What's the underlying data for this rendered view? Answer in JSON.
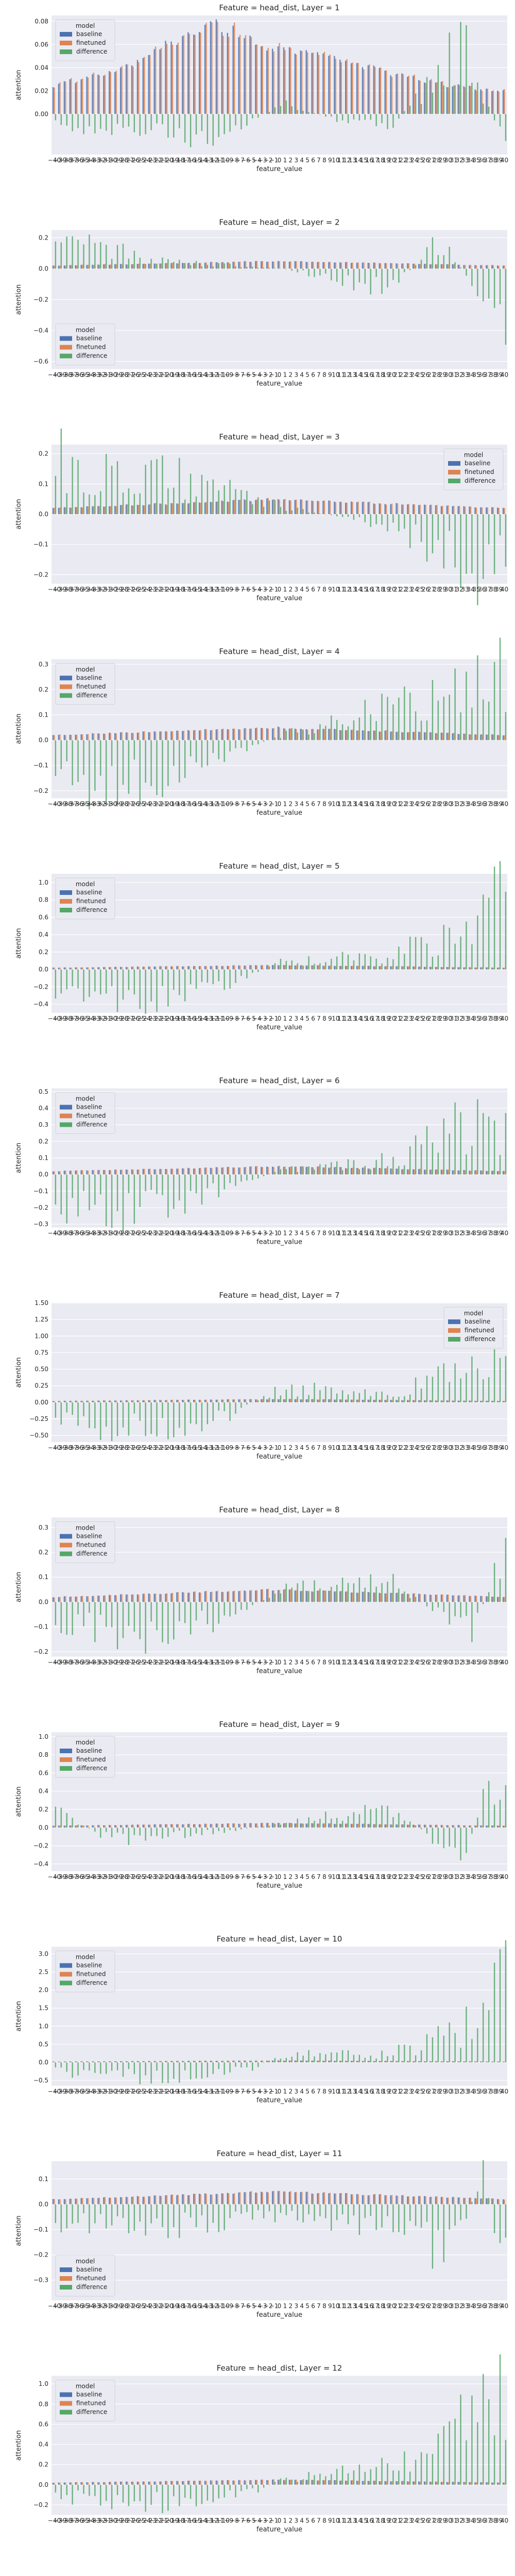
{
  "figure": {
    "colors": {
      "panel_bg": "#eaeaf2",
      "grid": "#ffffff",
      "baseline": "#4c72b0",
      "finetuned": "#dd8452",
      "difference": "#55a868"
    },
    "legend_title": "model",
    "legend_labels": [
      "baseline",
      "finetuned",
      "difference"
    ],
    "xlabel": "feature_value",
    "ylabel": "attention"
  },
  "chart_data": [
    {
      "type": "bar",
      "title": "Feature = head_dist, Layer = 1",
      "xlabel": "feature_value",
      "ylabel": "attention",
      "ylim": [
        -0.035,
        0.085
      ],
      "yticks": [
        0.0,
        0.02,
        0.04,
        0.06,
        0.08
      ],
      "ytick_labels": [
        "0.00",
        "0.02",
        "0.04",
        "0.06",
        "0.08"
      ],
      "legend_placement": "upper-left",
      "grid": true,
      "x_range": [
        -40,
        40
      ],
      "series": [
        {
          "name": "baseline",
          "profile": "hump",
          "peak_at": -11,
          "values_sample": {
            "-40": 0.025,
            "-30": 0.035,
            "-20": 0.06,
            "-11": 0.078,
            "0": 0.055,
            "10": 0.05,
            "20": 0.035,
            "30": 0.025,
            "40": 0.02
          }
        },
        {
          "name": "finetuned",
          "profile": "hump",
          "peak_at": -11,
          "values_sample": {
            "-40": 0.025,
            "-30": 0.035,
            "-20": 0.06,
            "-11": 0.078,
            "0": 0.055,
            "10": 0.05,
            "20": 0.035,
            "30": 0.025,
            "40": 0.02
          }
        },
        {
          "name": "difference",
          "values_sample": {
            "-40": -0.01,
            "-20": -0.02,
            "-11": -0.025,
            "0": 0.01,
            "10": -0.005,
            "20": -0.01,
            "32": 0.065,
            "40": -0.03
          }
        }
      ]
    },
    {
      "type": "bar",
      "title": "Feature = head_dist, Layer = 2",
      "xlabel": "feature_value",
      "ylabel": "attention",
      "ylim": [
        -0.65,
        0.25
      ],
      "yticks": [
        -0.6,
        -0.4,
        -0.2,
        0.0,
        0.2
      ],
      "ytick_labels": [
        "−0.6",
        "−0.4",
        "−0.2",
        "0.0",
        "0.2"
      ],
      "legend_placement": "lower-left",
      "grid": true,
      "x_range": [
        -40,
        40
      ],
      "series": [
        {
          "name": "baseline",
          "values_sample": {
            "-40": 0.02,
            "0": 0.05,
            "40": 0.02
          }
        },
        {
          "name": "finetuned",
          "values_sample": {
            "-40": 0.02,
            "0": 0.05,
            "40": 0.02
          }
        },
        {
          "name": "difference",
          "values_sample": {
            "-40": 0.2,
            "-35": 0.18,
            "-20": 0.05,
            "0": 0.0,
            "20": -0.15,
            "28": 0.2,
            "40": -0.38
          }
        }
      ]
    },
    {
      "type": "bar",
      "title": "Feature = head_dist, Layer = 3",
      "xlabel": "feature_value",
      "ylabel": "attention",
      "ylim": [
        -0.23,
        0.23
      ],
      "yticks": [
        -0.2,
        -0.1,
        0.0,
        0.1,
        0.2
      ],
      "ytick_labels": [
        "−0.2",
        "−0.1",
        "0.0",
        "0.1",
        "0.2"
      ],
      "legend_placement": "upper-right",
      "grid": true,
      "x_range": [
        -40,
        40
      ],
      "series": [
        {
          "name": "baseline",
          "values_sample": {
            "-40": 0.02,
            "0": 0.05,
            "40": 0.02
          }
        },
        {
          "name": "finetuned",
          "values_sample": {
            "-40": 0.02,
            "0": 0.05,
            "40": 0.02
          }
        },
        {
          "name": "difference",
          "values_sample": {
            "-40": 0.21,
            "-35": 0.15,
            "-20": 0.14,
            "0": 0.03,
            "20": -0.05,
            "35": -0.21,
            "40": -0.12
          }
        }
      ]
    },
    {
      "type": "bar",
      "title": "Feature = head_dist, Layer = 4",
      "xlabel": "feature_value",
      "ylabel": "attention",
      "ylim": [
        -0.23,
        0.32
      ],
      "yticks": [
        -0.2,
        -0.1,
        0.0,
        0.1,
        0.2,
        0.3
      ],
      "ytick_labels": [
        "−0.2",
        "−0.1",
        "0.0",
        "0.1",
        "0.2",
        "0.3"
      ],
      "legend_placement": "upper-left",
      "grid": true,
      "x_range": [
        -40,
        40
      ],
      "series": [
        {
          "name": "baseline",
          "values_sample": {
            "-40": 0.02,
            "0": 0.05,
            "40": 0.02
          }
        },
        {
          "name": "finetuned",
          "values_sample": {
            "-40": 0.02,
            "0": 0.05,
            "40": 0.02
          }
        },
        {
          "name": "difference",
          "values_sample": {
            "-40": -0.2,
            "-20": -0.17,
            "0": 0.02,
            "20": 0.15,
            "30": 0.2,
            "40": 0.31
          }
        }
      ]
    },
    {
      "type": "bar",
      "title": "Feature = head_dist, Layer = 5",
      "xlabel": "feature_value",
      "ylabel": "attention",
      "ylim": [
        -0.5,
        1.1
      ],
      "yticks": [
        -0.4,
        -0.2,
        0.0,
        0.2,
        0.4,
        0.6,
        0.8,
        1.0
      ],
      "ytick_labels": [
        "−0.4",
        "−0.2",
        "0.0",
        "0.2",
        "0.4",
        "0.6",
        "0.8",
        "1.0"
      ],
      "legend_placement": "upper-left",
      "grid": true,
      "x_range": [
        -40,
        40
      ],
      "series": [
        {
          "name": "baseline",
          "values_sample": {
            "-40": 0.02,
            "0": 0.05,
            "40": 0.02
          }
        },
        {
          "name": "finetuned",
          "values_sample": {
            "-40": 0.02,
            "0": 0.05,
            "40": 0.02
          }
        },
        {
          "name": "difference",
          "values_sample": {
            "-40": -0.3,
            "-25": -0.38,
            "-10": -0.2,
            "0": 0.1,
            "20": 0.2,
            "35": 0.5,
            "40": 1.05
          }
        }
      ]
    },
    {
      "type": "bar",
      "title": "Feature = head_dist, Layer = 6",
      "xlabel": "feature_value",
      "ylabel": "attention",
      "ylim": [
        -0.32,
        0.52
      ],
      "yticks": [
        -0.3,
        -0.2,
        -0.1,
        0.0,
        0.1,
        0.2,
        0.3,
        0.4,
        0.5
      ],
      "ytick_labels": [
        "−0.3",
        "−0.2",
        "−0.1",
        "0.0",
        "0.1",
        "0.2",
        "0.3",
        "0.4",
        "0.5"
      ],
      "legend_placement": "upper-left",
      "grid": true,
      "x_range": [
        -40,
        40
      ],
      "series": [
        {
          "name": "baseline",
          "values_sample": {
            "-40": 0.02,
            "0": 0.05,
            "40": 0.02
          }
        },
        {
          "name": "finetuned",
          "values_sample": {
            "-40": 0.02,
            "0": 0.05,
            "40": 0.02
          }
        },
        {
          "name": "difference",
          "values_sample": {
            "-40": -0.2,
            "-28": -0.28,
            "-10": -0.1,
            "0": 0.03,
            "20": 0.1,
            "30": 0.3,
            "40": 0.33
          }
        }
      ]
    },
    {
      "type": "bar",
      "title": "Feature = head_dist, Layer = 7",
      "xlabel": "feature_value",
      "ylabel": "attention",
      "ylim": [
        -0.6,
        1.5
      ],
      "yticks": [
        -0.5,
        -0.25,
        0.0,
        0.25,
        0.5,
        0.75,
        1.0,
        1.25,
        1.5
      ],
      "ytick_labels": [
        "−0.50",
        "−0.25",
        "0.00",
        "0.25",
        "0.50",
        "0.75",
        "1.00",
        "1.25",
        "1.50"
      ],
      "legend_placement": "upper-right",
      "grid": true,
      "x_range": [
        -40,
        40
      ],
      "series": [
        {
          "name": "baseline",
          "values_sample": {
            "-40": 0.02,
            "0": 0.05,
            "40": 0.02
          }
        },
        {
          "name": "finetuned",
          "values_sample": {
            "-40": 0.02,
            "0": 0.05,
            "40": 0.02
          }
        },
        {
          "name": "difference",
          "values_sample": {
            "-40": -0.35,
            "-25": -0.48,
            "-10": -0.25,
            "0": 0.25,
            "20": 0.1,
            "35": 0.7,
            "40": 0.55
          }
        }
      ]
    },
    {
      "type": "bar",
      "title": "Feature = head_dist, Layer = 8",
      "xlabel": "feature_value",
      "ylabel": "attention",
      "ylim": [
        -0.22,
        0.34
      ],
      "yticks": [
        -0.2,
        -0.1,
        0.0,
        0.1,
        0.2,
        0.3
      ],
      "ytick_labels": [
        "−0.2",
        "−0.1",
        "0.0",
        "0.1",
        "0.2",
        "0.3"
      ],
      "legend_placement": "upper-left",
      "grid": true,
      "x_range": [
        -40,
        40
      ],
      "series": [
        {
          "name": "baseline",
          "values_sample": {
            "-40": 0.02,
            "0": 0.05,
            "40": 0.02
          }
        },
        {
          "name": "finetuned",
          "values_sample": {
            "-40": 0.02,
            "0": 0.05,
            "40": 0.02
          }
        },
        {
          "name": "difference",
          "values_sample": {
            "-40": -0.1,
            "-25": -0.15,
            "-10": -0.08,
            "0": 0.05,
            "20": 0.1,
            "34": -0.18,
            "40": 0.33
          }
        }
      ]
    },
    {
      "type": "bar",
      "title": "Feature = head_dist, Layer = 9",
      "xlabel": "feature_value",
      "ylabel": "attention",
      "ylim": [
        -0.48,
        1.05
      ],
      "yticks": [
        -0.4,
        -0.2,
        0.0,
        0.2,
        0.4,
        0.6,
        0.8,
        1.0
      ],
      "ytick_labels": [
        "−0.4",
        "−0.2",
        "0.0",
        "0.2",
        "0.4",
        "0.6",
        "0.8",
        "1.0"
      ],
      "legend_placement": "upper-left",
      "grid": true,
      "x_range": [
        -40,
        40
      ],
      "series": [
        {
          "name": "baseline",
          "values_sample": {
            "-40": 0.02,
            "0": 0.05,
            "40": 0.02
          }
        },
        {
          "name": "finetuned",
          "values_sample": {
            "-40": 0.02,
            "0": 0.05,
            "40": 0.02
          }
        },
        {
          "name": "difference",
          "values_sample": {
            "-40": 0.2,
            "-30": -0.15,
            "-10": -0.05,
            "0": 0.05,
            "20": 0.25,
            "32": -0.4,
            "40": 1.0
          }
        }
      ]
    },
    {
      "type": "bar",
      "title": "Feature = head_dist, Layer = 10",
      "xlabel": "feature_value",
      "ylabel": "attention",
      "ylim": [
        -0.65,
        3.2
      ],
      "yticks": [
        -0.5,
        0.0,
        0.5,
        1.0,
        1.5,
        2.0,
        2.5,
        3.0
      ],
      "ytick_labels": [
        "−0.5",
        "0.0",
        "0.5",
        "1.0",
        "1.5",
        "2.0",
        "2.5",
        "3.0"
      ],
      "legend_placement": "upper-left",
      "grid": true,
      "x_range": [
        -40,
        40
      ],
      "series": [
        {
          "name": "baseline",
          "values_sample": {
            "-40": 0.02,
            "0": 0.05,
            "40": 0.02
          }
        },
        {
          "name": "finetuned",
          "values_sample": {
            "-40": 0.02,
            "0": 0.05,
            "40": 0.02
          }
        },
        {
          "name": "difference",
          "values_sample": {
            "-40": -0.4,
            "-20": -0.45,
            "-5": -0.2,
            "0": 0.25,
            "20": 0.3,
            "35": 1.2,
            "40": 3.1
          }
        }
      ]
    },
    {
      "type": "bar",
      "title": "Feature = head_dist, Layer = 11",
      "xlabel": "feature_value",
      "ylabel": "attention",
      "ylim": [
        -0.38,
        0.17
      ],
      "yticks": [
        -0.3,
        -0.2,
        -0.1,
        0.0,
        0.1
      ],
      "ytick_labels": [
        "−0.3",
        "−0.2",
        "−0.1",
        "0.0",
        "0.1"
      ],
      "legend_placement": "lower-left",
      "grid": true,
      "x_range": [
        -40,
        40
      ],
      "series": [
        {
          "name": "baseline",
          "values_sample": {
            "-40": 0.02,
            "0": 0.05,
            "40": 0.02
          }
        },
        {
          "name": "finetuned",
          "values_sample": {
            "-40": 0.02,
            "0": 0.05,
            "40": 0.02
          }
        },
        {
          "name": "difference",
          "values_sample": {
            "-40": -0.08,
            "-20": -0.1,
            "0": -0.05,
            "20": -0.1,
            "30": -0.25,
            "36": 0.15,
            "40": -0.35
          }
        }
      ]
    },
    {
      "type": "bar",
      "title": "Feature = head_dist, Layer = 12",
      "xlabel": "feature_value",
      "ylabel": "attention",
      "ylim": [
        -0.3,
        1.08
      ],
      "yticks": [
        -0.2,
        0.0,
        0.2,
        0.4,
        0.6,
        0.8,
        1.0
      ],
      "ytick_labels": [
        "−0.2",
        "0.0",
        "0.2",
        "0.4",
        "0.6",
        "0.8",
        "1.0"
      ],
      "legend_placement": "upper-left",
      "grid": true,
      "x_range": [
        -40,
        40
      ],
      "series": [
        {
          "name": "baseline",
          "values_sample": {
            "-40": 0.02,
            "0": 0.05,
            "40": 0.02
          }
        },
        {
          "name": "finetuned",
          "values_sample": {
            "-40": 0.02,
            "0": 0.05,
            "40": 0.02
          }
        },
        {
          "name": "difference",
          "values_sample": {
            "-40": -0.15,
            "-20": -0.2,
            "-5": -0.1,
            "0": 0.05,
            "20": 0.2,
            "35": 0.8,
            "40": 1.0
          }
        }
      ]
    }
  ]
}
